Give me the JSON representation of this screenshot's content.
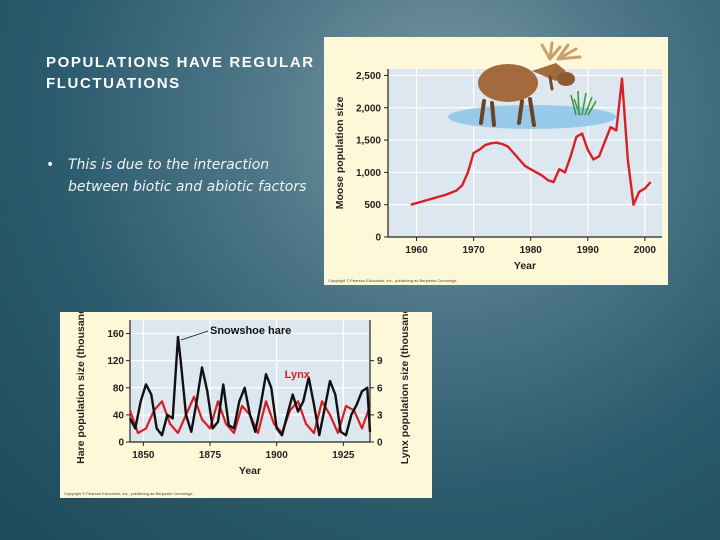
{
  "slide": {
    "title": "POPULATIONS HAVE REGULAR FLUCTUATIONS",
    "bullet_marker": "•",
    "bullet_text": "This is due to the interaction between biotic and abiotic factors"
  },
  "colors": {
    "panel_background": "#fff8d8",
    "plot_background": "#dde7ef",
    "moose_line": "#d81f26",
    "hare_line": "#111111",
    "lynx_line": "#d81f26",
    "lynx_label": "#d81f26",
    "water": "#8fc6e8"
  },
  "icons": {
    "moose_illustration": "moose-icon",
    "water_illustration": "water-icon",
    "grass_illustration": "grass-icon"
  },
  "chart_data": [
    {
      "type": "line",
      "xlabel": "Year",
      "ylabel": "Moose population size",
      "xlim": [
        1955,
        2003
      ],
      "ylim": [
        0,
        2600
      ],
      "xticks": [
        1960,
        1970,
        1980,
        1990,
        2000
      ],
      "xtick_labels": [
        "1960",
        "1970",
        "1980",
        "1990",
        "2000"
      ],
      "yticks": [
        0,
        500,
        1000,
        1500,
        2000,
        2500
      ],
      "ytick_labels": [
        "0",
        "500",
        "1,000",
        "1,500",
        "2,000",
        "2,500"
      ],
      "grid": true,
      "copyright": "Copyright © Pearson Education, Inc., publishing as Benjamin Cummings.",
      "series": [
        {
          "name": "",
          "x": [
            1959,
            1961,
            1963,
            1965,
            1967,
            1968,
            1969,
            1970,
            1971,
            1972,
            1973,
            1974,
            1975,
            1976,
            1977,
            1978,
            1979,
            1980,
            1981,
            1982,
            1983,
            1984,
            1985,
            1986,
            1987,
            1988,
            1989,
            1990,
            1991,
            1992,
            1993,
            1994,
            1995,
            1996,
            1997,
            1998,
            1999,
            2000,
            2001
          ],
          "values": [
            500,
            550,
            600,
            650,
            720,
            800,
            1000,
            1300,
            1350,
            1420,
            1450,
            1460,
            1440,
            1400,
            1300,
            1200,
            1100,
            1050,
            1000,
            950,
            880,
            850,
            1050,
            1000,
            1250,
            1550,
            1600,
            1350,
            1200,
            1250,
            1480,
            1700,
            1650,
            2450,
            1200,
            500,
            700,
            750,
            850
          ]
        }
      ]
    },
    {
      "type": "line",
      "xlabel": "Year",
      "ylabel": "Hare population size (thousands)",
      "y2label": "Lynx population size (thousands)",
      "xlim": [
        1845,
        1935
      ],
      "ylim": [
        0,
        180
      ],
      "y2lim": [
        0,
        13.5
      ],
      "xticks": [
        1850,
        1875,
        1900,
        1925
      ],
      "xtick_labels": [
        "1850",
        "1875",
        "1900",
        "1925"
      ],
      "yticks": [
        0,
        40,
        80,
        120,
        160
      ],
      "ytick_labels": [
        "0",
        "40",
        "80",
        "120",
        "160"
      ],
      "y2ticks": [
        0,
        3,
        6,
        9
      ],
      "y2tick_labels": [
        "0",
        "3",
        "6",
        "9"
      ],
      "grid": true,
      "copyright": "Copyright © Pearson Education, Inc., publishing as Benjamin Cummings.",
      "series": [
        {
          "name": "Snowshoe hare",
          "axis": "left",
          "x": [
            1845,
            1847,
            1849,
            1851,
            1853,
            1855,
            1857,
            1859,
            1861,
            1863,
            1864,
            1866,
            1868,
            1870,
            1872,
            1874,
            1876,
            1878,
            1880,
            1882,
            1884,
            1886,
            1888,
            1890,
            1892,
            1894,
            1896,
            1898,
            1900,
            1902,
            1904,
            1906,
            1908,
            1910,
            1912,
            1914,
            1916,
            1918,
            1920,
            1922,
            1924,
            1926,
            1928,
            1930,
            1932,
            1934,
            1935
          ],
          "values": [
            35,
            20,
            60,
            85,
            70,
            20,
            10,
            40,
            35,
            155,
            120,
            40,
            15,
            60,
            110,
            75,
            20,
            30,
            85,
            25,
            20,
            60,
            80,
            40,
            15,
            55,
            100,
            80,
            20,
            10,
            40,
            70,
            45,
            60,
            95,
            55,
            10,
            50,
            90,
            70,
            15,
            10,
            40,
            55,
            75,
            80,
            15
          ]
        },
        {
          "name": "Lynx",
          "axis": "right",
          "x": [
            1845,
            1848,
            1851,
            1854,
            1857,
            1860,
            1863,
            1866,
            1869,
            1872,
            1875,
            1878,
            1881,
            1884,
            1887,
            1890,
            1893,
            1896,
            1899,
            1902,
            1905,
            1908,
            1911,
            1914,
            1917,
            1920,
            1923,
            1926,
            1929,
            1932,
            1935
          ],
          "values": [
            3.5,
            1.0,
            1.5,
            3.5,
            4.5,
            2.0,
            1.0,
            3.0,
            5.0,
            2.5,
            1.5,
            4.5,
            2.0,
            1.0,
            4.0,
            3.0,
            1.0,
            4.5,
            2.0,
            1.0,
            3.5,
            4.5,
            2.0,
            1.0,
            4.5,
            3.0,
            1.0,
            4.0,
            3.5,
            1.5,
            4.0
          ]
        }
      ]
    }
  ]
}
